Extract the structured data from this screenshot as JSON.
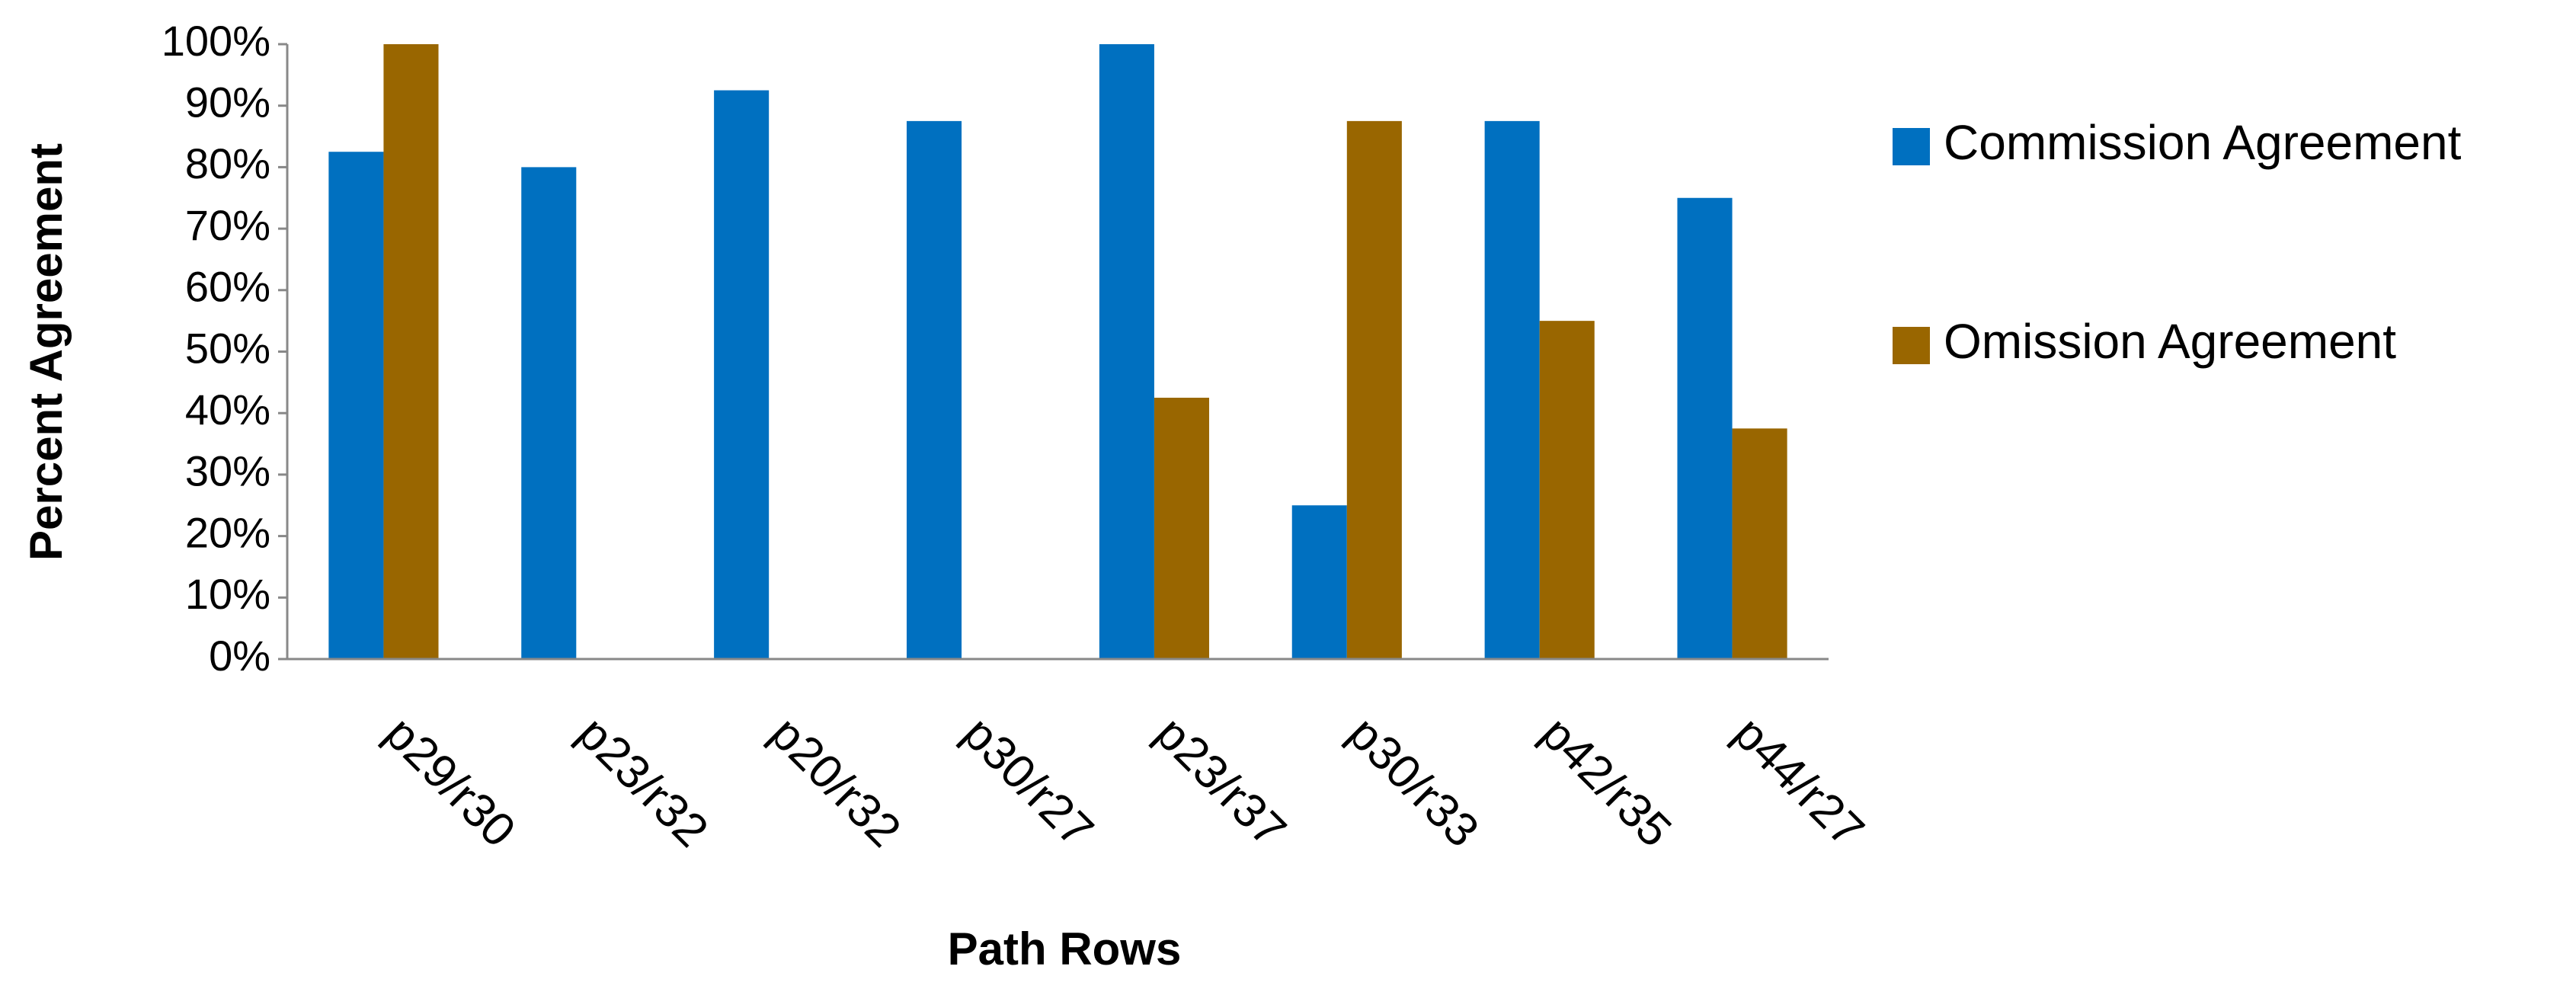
{
  "chart_data": {
    "type": "bar",
    "x_label": "Path Rows",
    "y_label": "Percent Agreement",
    "categories": [
      "p29/r30",
      "p23/r32",
      "p20/r32",
      "p30/r27",
      "p23/r37",
      "p30/r33",
      "p42/r35",
      "p44/r27"
    ],
    "series": [
      {
        "name": "Commission Agreement",
        "color": "#0070c0",
        "values": [
          82.5,
          80,
          92.5,
          87.5,
          100,
          25,
          87.5,
          75
        ]
      },
      {
        "name": "Omission Agreement",
        "color": "#996600",
        "values": [
          100,
          null,
          null,
          null,
          42.5,
          87.5,
          55,
          37.5
        ]
      }
    ],
    "ylim": [
      0,
      100
    ],
    "yticks": [
      {
        "value": 0,
        "label": "0%"
      },
      {
        "value": 10,
        "label": "10%"
      },
      {
        "value": 20,
        "label": "20%"
      },
      {
        "value": 30,
        "label": "30%"
      },
      {
        "value": 40,
        "label": "40%"
      },
      {
        "value": 50,
        "label": "50%"
      },
      {
        "value": 60,
        "label": "60%"
      },
      {
        "value": 70,
        "label": "70%"
      },
      {
        "value": 80,
        "label": "80%"
      },
      {
        "value": 90,
        "label": "90%"
      },
      {
        "value": 100,
        "label": "100%"
      }
    ],
    "grid": false,
    "legend": "right"
  }
}
